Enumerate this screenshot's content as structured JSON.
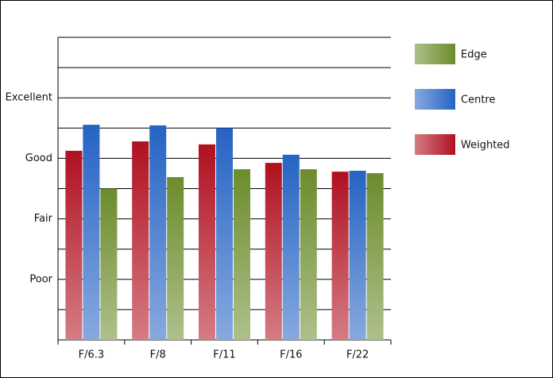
{
  "chart_data": {
    "type": "bar",
    "categories": [
      "F/6.3",
      "F/8",
      "F/11",
      "F/16",
      "F/22"
    ],
    "series": [
      {
        "name": "Edge",
        "color": "#6b8c2c",
        "values": [
          5.0,
          5.38,
          5.64,
          5.64,
          5.51
        ]
      },
      {
        "name": "Centre",
        "color": "#2563c4",
        "values": [
          7.11,
          7.09,
          7.0,
          6.12,
          5.59
        ]
      },
      {
        "name": "Weighted",
        "color": "#b01020",
        "values": [
          6.25,
          6.56,
          6.46,
          5.85,
          5.56
        ]
      }
    ],
    "ylim": [
      0,
      10
    ],
    "yticks": [
      {
        "value": 2,
        "label": "Poor"
      },
      {
        "value": 4,
        "label": "Fair"
      },
      {
        "value": 6,
        "label": "Good"
      },
      {
        "value": 8,
        "label": "Excellent"
      }
    ],
    "minor_yticks": [
      1,
      3,
      5,
      7,
      9,
      10
    ],
    "grid": true
  }
}
